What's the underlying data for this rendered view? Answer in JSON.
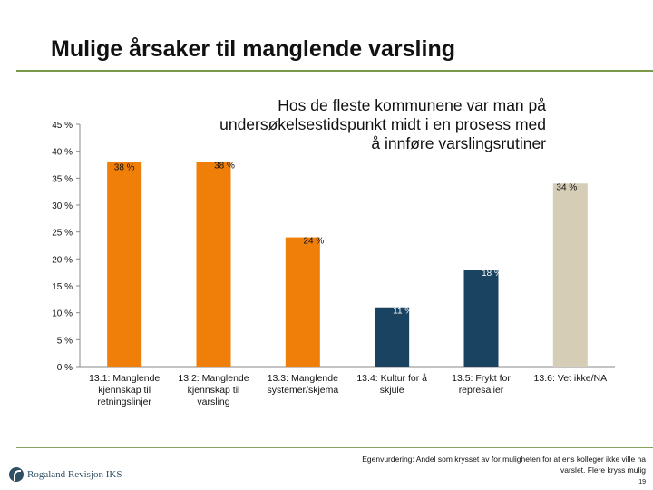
{
  "slide": {
    "title": "Mulige årsaker til manglende varsling",
    "annotation": "Hos de fleste kommunene var man på undersøkelsestidspunkt midt i en prosess med å innføre varslingsrutiner",
    "footnote": "Egenvurdering: Andel som krysset av for muligheten for at ens kolleger ikke ville ha varslet. Flere kryss mulig",
    "page_number": "19",
    "logo_text": "Rogaland Revisjon IKS"
  },
  "chart_data": {
    "type": "bar",
    "categories": [
      [
        "13.1: Manglende",
        "kjennskap til",
        "retningslinjer"
      ],
      [
        "13.2: Manglende",
        "kjennskap til",
        "varsling"
      ],
      [
        "13.3: Manglende",
        "systemer/skjema"
      ],
      [
        "13.4: Kultur for å",
        "skjule"
      ],
      [
        "13.5: Frykt for",
        "represalier"
      ],
      [
        "13.6: Vet ikke/NA"
      ]
    ],
    "values": [
      38,
      38,
      24,
      11,
      18,
      34
    ],
    "data_labels": [
      "38 %",
      "38 %",
      "24 %",
      "11 %",
      "18 %",
      "34 %"
    ],
    "colors": [
      "#f07f09",
      "#f07f09",
      "#f07f09",
      "#1a4362",
      "#1a4362",
      "#d5cdb6"
    ],
    "yticks": [
      "0 %",
      "5 %",
      "10 %",
      "15 %",
      "20 %",
      "25 %",
      "30 %",
      "35 %",
      "40 %",
      "45 %"
    ],
    "ylim": [
      0,
      45
    ],
    "grid": false
  }
}
